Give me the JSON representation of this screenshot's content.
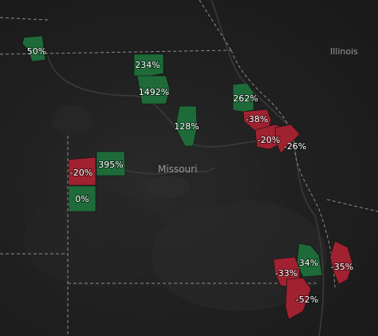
{
  "map": {
    "state_label": "Missouri",
    "neighbor_label": "Illinois",
    "colors": {
      "increase": "#1e6b39",
      "decrease": "#a0212f",
      "background": "#1b1b1b",
      "border": "#8c8c8c",
      "river": "#3a3a3a",
      "label": "#9a9a9a"
    },
    "regions": [
      {
        "label": "50%",
        "trend": "increase"
      },
      {
        "label": "234%",
        "trend": "increase"
      },
      {
        "label": "1492%",
        "trend": "increase"
      },
      {
        "label": "128%",
        "trend": "increase"
      },
      {
        "label": "262%",
        "trend": "increase"
      },
      {
        "label": "-38%",
        "trend": "decrease"
      },
      {
        "label": "-20%",
        "trend": "decrease"
      },
      {
        "label": "-26%",
        "trend": "decrease"
      },
      {
        "label": "-20%",
        "trend": "decrease"
      },
      {
        "label": "395%",
        "trend": "increase"
      },
      {
        "label": "0%",
        "trend": "increase"
      },
      {
        "label": "34%",
        "trend": "increase"
      },
      {
        "label": "-33%",
        "trend": "decrease"
      },
      {
        "label": "-35%",
        "trend": "decrease"
      },
      {
        "label": "-52%",
        "trend": "decrease"
      }
    ]
  }
}
